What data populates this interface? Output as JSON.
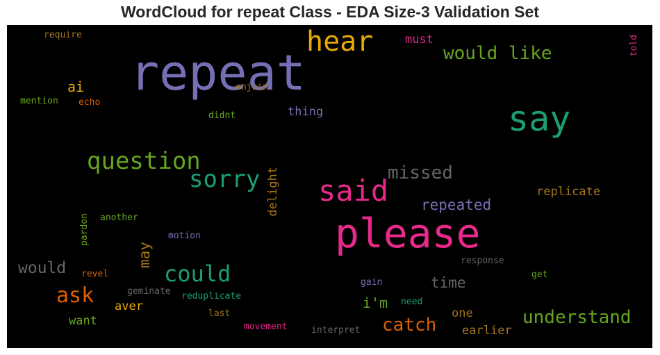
{
  "chart_data": {
    "type": "wordcloud",
    "title": "WordCloud for repeat Class - EDA Size-3 Validation Set",
    "background": "#000000",
    "words": [
      {
        "text": "repeat",
        "color": "#7570b3"
      },
      {
        "text": "please",
        "color": "#e7298a"
      },
      {
        "text": "say",
        "color": "#1b9e77"
      },
      {
        "text": "said",
        "color": "#e7298a"
      },
      {
        "text": "hear",
        "color": "#e6ab02"
      },
      {
        "text": "question",
        "color": "#66a61e"
      },
      {
        "text": "sorry",
        "color": "#1b9e77"
      },
      {
        "text": "could",
        "color": "#1b9e77"
      },
      {
        "text": "would like",
        "color": "#66a61e"
      },
      {
        "text": "understand",
        "color": "#66a61e"
      },
      {
        "text": "missed",
        "color": "#666666"
      },
      {
        "text": "catch",
        "color": "#d95f02"
      },
      {
        "text": "ask",
        "color": "#d95f02"
      },
      {
        "text": "repeated",
        "color": "#7570b3"
      },
      {
        "text": "would",
        "color": "#666666"
      },
      {
        "text": "time",
        "color": "#666666"
      },
      {
        "text": "i'm",
        "color": "#66a61e"
      },
      {
        "text": "replicate",
        "color": "#a6761d"
      },
      {
        "text": "may",
        "color": "#a6761d"
      },
      {
        "text": "ai",
        "color": "#e6ab02"
      },
      {
        "text": "delight",
        "color": "#a6761d"
      },
      {
        "text": "thing",
        "color": "#7570b3"
      },
      {
        "text": "must",
        "color": "#e7298a"
      },
      {
        "text": "earlier",
        "color": "#a6761d"
      },
      {
        "text": "one",
        "color": "#a6761d"
      },
      {
        "text": "aver",
        "color": "#e6ab02"
      },
      {
        "text": "want",
        "color": "#66a61e"
      },
      {
        "text": "told",
        "color": "#e7298a"
      },
      {
        "text": "enjoin",
        "color": "#a6761d"
      },
      {
        "text": "require",
        "color": "#a6761d"
      },
      {
        "text": "mention",
        "color": "#66a61e"
      },
      {
        "text": "echo",
        "color": "#d95f02"
      },
      {
        "text": "didnt",
        "color": "#66a61e"
      },
      {
        "text": "pardon",
        "color": "#66a61e"
      },
      {
        "text": "another",
        "color": "#66a61e"
      },
      {
        "text": "motion",
        "color": "#7570b3"
      },
      {
        "text": "revel",
        "color": "#d95f02"
      },
      {
        "text": "geminate",
        "color": "#666666"
      },
      {
        "text": "reduplicate",
        "color": "#1b9e77"
      },
      {
        "text": "last",
        "color": "#a6761d"
      },
      {
        "text": "movement",
        "color": "#e7298a"
      },
      {
        "text": "interpret",
        "color": "#666666"
      },
      {
        "text": "gain",
        "color": "#7570b3"
      },
      {
        "text": "need",
        "color": "#1b9e77"
      },
      {
        "text": "response",
        "color": "#666666"
      },
      {
        "text": "get",
        "color": "#66a61e"
      }
    ]
  }
}
